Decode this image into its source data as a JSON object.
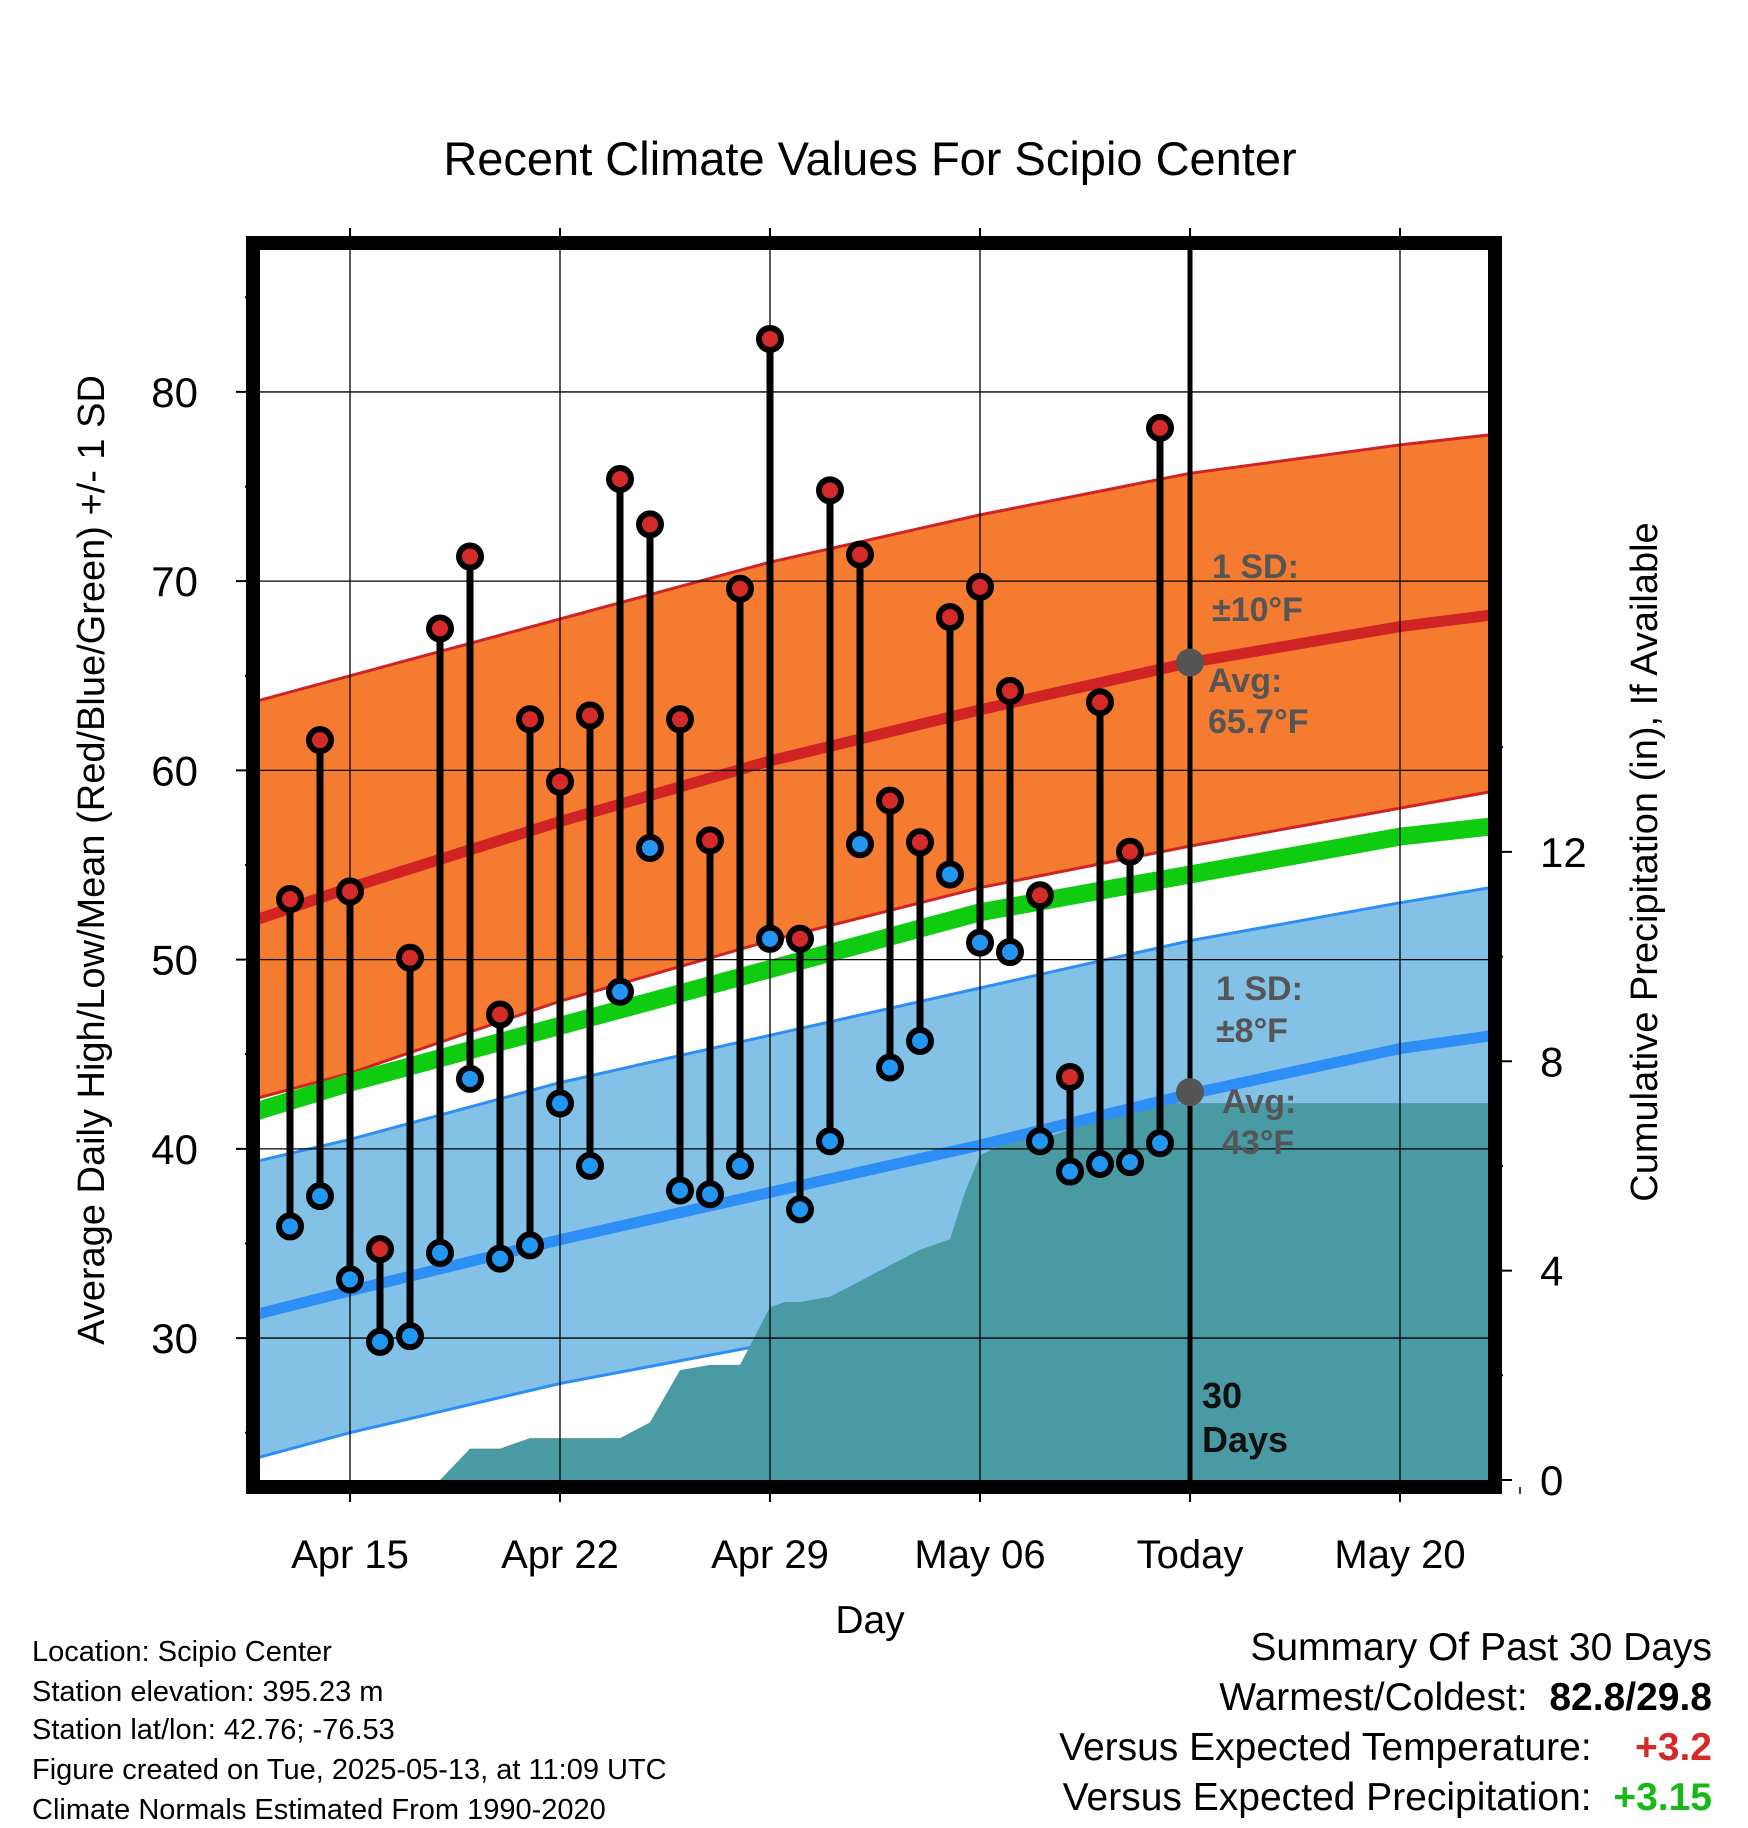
{
  "chart_data": {
    "type": "line",
    "title": "Recent Climate Values For Scipio Center",
    "xlabel": "Day",
    "ylabel": "Average Daily High/Low/Mean (Red/Blue/Green) +/- 1 SD",
    "y2label": "Cumulative Precipitation (in), If Available",
    "x_ticks": [
      "Apr 15",
      "Apr 22",
      "Apr 29",
      "May 06",
      "Today",
      "May 20"
    ],
    "y_ticks": [
      "30",
      "40",
      "50",
      "60",
      "70",
      "80"
    ],
    "y2_ticks": [
      "0",
      "4",
      "8",
      "12"
    ],
    "ylim": [
      22.5,
      87.5
    ],
    "y2lim": [
      0,
      23.5
    ],
    "today_label": [
      "30",
      "Days"
    ],
    "high_annotation": {
      "sd": "1 SD:",
      "sd_value": "±10°F",
      "avg": "Avg:",
      "avg_value": "65.7°F",
      "avg_y": 65.7
    },
    "low_annotation": {
      "sd": "1 SD:",
      "sd_value": "±8°F",
      "avg": "Avg:",
      "avg_value": "43°F",
      "avg_y": 43.0
    },
    "normals": {
      "x": [
        -3.5,
        0,
        7,
        14,
        21,
        28,
        35,
        39.5
      ],
      "high": [
        51.9,
        53.8,
        57.3,
        60.5,
        63.2,
        65.7,
        67.6,
        68.5
      ],
      "high_sd_upper": [
        63.5,
        65.0,
        68.0,
        71.0,
        73.5,
        75.7,
        77.2,
        78.0
      ],
      "high_sd_lower": [
        42.5,
        44.0,
        47.8,
        51.0,
        53.8,
        56.0,
        58.0,
        59.3
      ],
      "mean": [
        41.8,
        43.5,
        46.5,
        49.5,
        52.5,
        54.5,
        56.5,
        57.3
      ],
      "low": [
        31.1,
        32.5,
        35.2,
        37.7,
        40.2,
        42.9,
        45.3,
        46.3
      ],
      "low_sd_upper": [
        39.2,
        40.5,
        43.5,
        46.0,
        48.5,
        51.0,
        53.0,
        54.2
      ],
      "low_sd_lower": [
        23.5,
        25.0,
        27.6,
        29.7,
        31.5,
        32.7,
        34.0,
        34.8
      ]
    },
    "daily": {
      "x": [
        -2,
        -1,
        0,
        1,
        2,
        3,
        4,
        5,
        6,
        7,
        8,
        9,
        10,
        11,
        12,
        13,
        14,
        15,
        16,
        17,
        18,
        19,
        20,
        21,
        22,
        23,
        24,
        25,
        26,
        27
      ],
      "highs": [
        53.2,
        61.6,
        53.6,
        34.7,
        50.1,
        67.5,
        71.3,
        47.1,
        62.7,
        59.4,
        62.9,
        75.4,
        73.0,
        62.7,
        56.3,
        69.6,
        82.8,
        51.1,
        74.8,
        71.4,
        58.4,
        56.2,
        68.1,
        69.7,
        64.2,
        53.4,
        43.8,
        63.6,
        55.7,
        78.1
      ],
      "lows": [
        35.9,
        37.5,
        33.1,
        29.8,
        30.1,
        34.5,
        43.7,
        34.2,
        34.9,
        42.4,
        39.1,
        48.3,
        55.9,
        37.8,
        37.6,
        39.1,
        51.1,
        36.8,
        40.4,
        56.1,
        44.3,
        45.7,
        54.5,
        50.9,
        50.4,
        40.4,
        38.8,
        39.2,
        39.3,
        40.3
      ]
    },
    "precip": {
      "x": [
        3,
        4,
        5,
        6,
        7,
        8,
        9,
        10,
        11,
        12,
        13,
        14,
        14.5,
        15,
        16,
        17,
        18,
        19,
        20,
        20.5,
        21,
        22,
        23,
        24,
        25,
        26,
        27,
        28,
        35,
        39.5
      ],
      "values": [
        0,
        0.6,
        0.6,
        0.8,
        0.8,
        0.8,
        0.8,
        1.1,
        2.1,
        2.2,
        2.2,
        3.3,
        3.4,
        3.4,
        3.5,
        3.8,
        4.1,
        4.4,
        4.6,
        5.5,
        6.2,
        6.5,
        6.5,
        6.7,
        6.9,
        7.2,
        7.2,
        7.2,
        7.2,
        7.2
      ]
    }
  },
  "footer": {
    "location": "Location: Scipio Center",
    "elevation": "Station elevation: 395.23 m",
    "latlon": "Station lat/lon: 42.76; -76.53",
    "created": "Figure created on Tue, 2025-05-13, at 11:09 UTC",
    "normals": "Climate Normals Estimated From 1990-2020"
  },
  "summary": {
    "heading": "Summary Of Past 30 Days",
    "warmest_label": "Warmest/Coldest:",
    "warmest_value": "82.8/29.8",
    "temp_label": "Versus Expected Temperature:",
    "temp_value": "+3.2",
    "precip_label": "Versus Expected Precipitation:",
    "precip_value": "+3.15"
  },
  "colors": {
    "high_band": "#f47b30",
    "high_line": "#d02424",
    "low_band": "#84c1e6",
    "low_line": "#2d8ef5",
    "mean_line": "#10cc10",
    "precip": "#4a9aa4",
    "high_dot": "#d42a2a",
    "low_dot": "#2196f3",
    "annotation": "#555555"
  }
}
